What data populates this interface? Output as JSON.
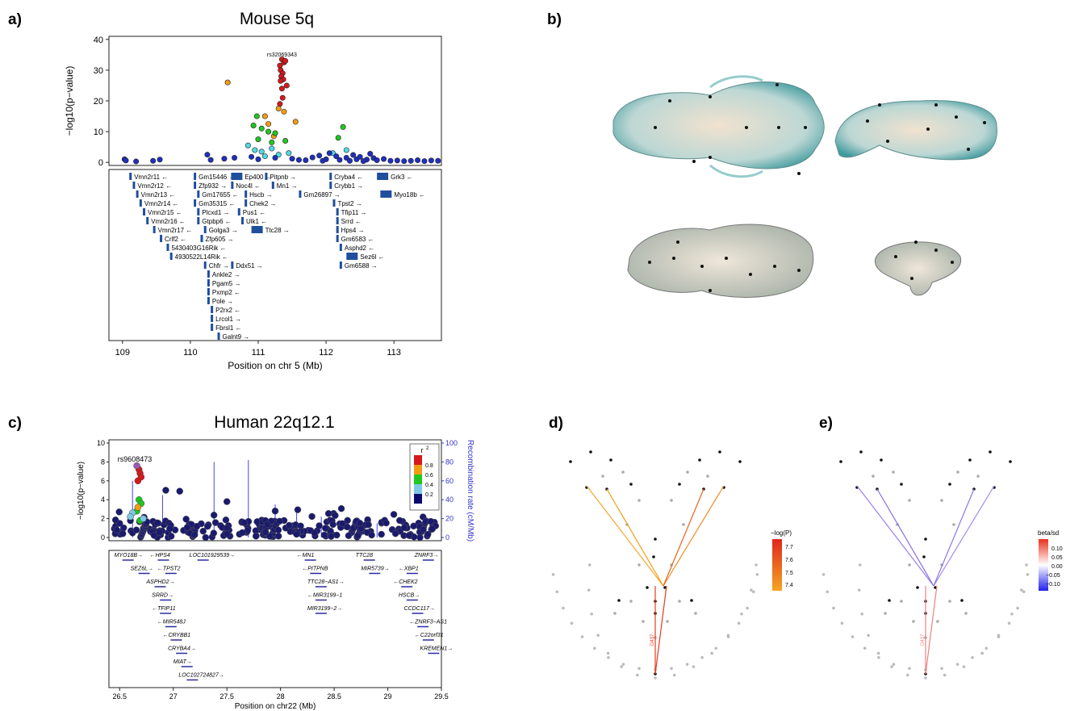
{
  "panels": {
    "a": {
      "label": "a)",
      "title": "Mouse 5q"
    },
    "b": {
      "label": "b)"
    },
    "c": {
      "label": "c)",
      "title": "Human 22q12.1"
    },
    "d": {
      "label": "d)"
    },
    "e": {
      "label": "e)"
    }
  },
  "colors": {
    "red": "#d7191c",
    "orange": "#f39c12",
    "green": "#1ec81e",
    "cyan": "#4fd9e6",
    "blue": "#1f2fbf",
    "navy": "#0b0b6e",
    "gene": "#1f4e9e"
  },
  "chart_data": [
    {
      "id": "mouse",
      "type": "scatter",
      "title": "Mouse 5q",
      "xlabel": "Position on chr 5 (Mb)",
      "ylabel": "−log10(p−value)",
      "xlim": [
        108.8,
        113.7
      ],
      "ylim": [
        -1,
        41
      ],
      "xticks": [
        "109",
        "110",
        "111",
        "112",
        "113"
      ],
      "yticks": [
        "0",
        "10",
        "20",
        "30",
        "40"
      ],
      "lead_snp": "rs32069343",
      "points": [
        {
          "x": 111.35,
          "y": 33.5,
          "c": "red"
        },
        {
          "x": 111.38,
          "y": 32.5,
          "c": "red"
        },
        {
          "x": 111.32,
          "y": 31.5,
          "c": "red"
        },
        {
          "x": 111.4,
          "y": 33,
          "c": "red"
        },
        {
          "x": 111.33,
          "y": 30,
          "c": "red"
        },
        {
          "x": 111.36,
          "y": 29,
          "c": "red"
        },
        {
          "x": 111.34,
          "y": 28,
          "c": "red"
        },
        {
          "x": 111.37,
          "y": 27,
          "c": "red"
        },
        {
          "x": 111.33,
          "y": 26.5,
          "c": "red"
        },
        {
          "x": 111.42,
          "y": 25,
          "c": "red"
        },
        {
          "x": 111.35,
          "y": 24,
          "c": "red"
        },
        {
          "x": 111.36,
          "y": 21,
          "c": "red"
        },
        {
          "x": 111.32,
          "y": 19,
          "c": "red"
        },
        {
          "x": 110.55,
          "y": 26,
          "c": "orange"
        },
        {
          "x": 111.3,
          "y": 17.5,
          "c": "orange"
        },
        {
          "x": 111.38,
          "y": 16.5,
          "c": "orange"
        },
        {
          "x": 111.55,
          "y": 13.2,
          "c": "orange"
        },
        {
          "x": 111.15,
          "y": 12.5,
          "c": "orange"
        },
        {
          "x": 111.1,
          "y": 15,
          "c": "orange"
        },
        {
          "x": 111.23,
          "y": 8.5,
          "c": "orange"
        },
        {
          "x": 110.98,
          "y": 15,
          "c": "green"
        },
        {
          "x": 110.93,
          "y": 12,
          "c": "green"
        },
        {
          "x": 111.05,
          "y": 11,
          "c": "green"
        },
        {
          "x": 111.15,
          "y": 10,
          "c": "green"
        },
        {
          "x": 111.25,
          "y": 9.5,
          "c": "green"
        },
        {
          "x": 111.4,
          "y": 7,
          "c": "green"
        },
        {
          "x": 111.2,
          "y": 6.5,
          "c": "green"
        },
        {
          "x": 112.25,
          "y": 11.5,
          "c": "green"
        },
        {
          "x": 112.18,
          "y": 8,
          "c": "green"
        },
        {
          "x": 111.0,
          "y": 7.5,
          "c": "green"
        },
        {
          "x": 110.85,
          "y": 5.5,
          "c": "cyan"
        },
        {
          "x": 110.95,
          "y": 4,
          "c": "cyan"
        },
        {
          "x": 111.05,
          "y": 3.5,
          "c": "cyan"
        },
        {
          "x": 111.2,
          "y": 4.5,
          "c": "cyan"
        },
        {
          "x": 111.3,
          "y": 2.5,
          "c": "cyan"
        },
        {
          "x": 111.45,
          "y": 3,
          "c": "cyan"
        },
        {
          "x": 112.1,
          "y": 3,
          "c": "cyan"
        },
        {
          "x": 112.3,
          "y": 4,
          "c": "cyan"
        },
        {
          "x": 111.1,
          "y": 2,
          "c": "cyan"
        },
        {
          "x": 109.03,
          "y": 1,
          "c": "blue"
        },
        {
          "x": 109.05,
          "y": 0.6,
          "c": "blue"
        },
        {
          "x": 109.2,
          "y": 0.3,
          "c": "blue"
        },
        {
          "x": 109.45,
          "y": 0.5,
          "c": "blue"
        },
        {
          "x": 109.55,
          "y": 0.9,
          "c": "blue"
        },
        {
          "x": 110.25,
          "y": 2.5,
          "c": "blue"
        },
        {
          "x": 110.3,
          "y": 0.8,
          "c": "blue"
        },
        {
          "x": 110.5,
          "y": 1.2,
          "c": "blue"
        },
        {
          "x": 110.65,
          "y": 1.5,
          "c": "blue"
        },
        {
          "x": 110.9,
          "y": 1.8,
          "c": "blue"
        },
        {
          "x": 111.0,
          "y": 1.0,
          "c": "blue"
        },
        {
          "x": 111.25,
          "y": 1.5,
          "c": "blue"
        },
        {
          "x": 111.5,
          "y": 1.2,
          "c": "blue"
        },
        {
          "x": 111.6,
          "y": 0.8,
          "c": "blue"
        },
        {
          "x": 111.7,
          "y": 0.7,
          "c": "blue"
        },
        {
          "x": 111.8,
          "y": 1.6,
          "c": "blue"
        },
        {
          "x": 111.9,
          "y": 2.2,
          "c": "blue"
        },
        {
          "x": 112.0,
          "y": 1.0,
          "c": "blue"
        },
        {
          "x": 112.05,
          "y": 3.0,
          "c": "blue"
        },
        {
          "x": 112.15,
          "y": 2.0,
          "c": "blue"
        },
        {
          "x": 112.2,
          "y": 0.8,
          "c": "blue"
        },
        {
          "x": 112.3,
          "y": 1.5,
          "c": "blue"
        },
        {
          "x": 112.4,
          "y": 2.4,
          "c": "blue"
        },
        {
          "x": 112.45,
          "y": 1.0,
          "c": "blue"
        },
        {
          "x": 112.5,
          "y": 1.8,
          "c": "blue"
        },
        {
          "x": 112.6,
          "y": 0.9,
          "c": "blue"
        },
        {
          "x": 112.7,
          "y": 1.4,
          "c": "blue"
        },
        {
          "x": 112.75,
          "y": 0.7,
          "c": "blue"
        },
        {
          "x": 112.85,
          "y": 1.1,
          "c": "blue"
        },
        {
          "x": 112.95,
          "y": 0.5,
          "c": "blue"
        },
        {
          "x": 113.05,
          "y": 0.6,
          "c": "blue"
        },
        {
          "x": 113.15,
          "y": 0.4,
          "c": "blue"
        },
        {
          "x": 113.25,
          "y": 0.5,
          "c": "blue"
        },
        {
          "x": 113.35,
          "y": 0.7,
          "c": "blue"
        },
        {
          "x": 113.45,
          "y": 0.4,
          "c": "blue"
        },
        {
          "x": 113.55,
          "y": 0.6,
          "c": "blue"
        },
        {
          "x": 113.65,
          "y": 0.5,
          "c": "blue"
        },
        {
          "x": 112.55,
          "y": 0.4,
          "c": "blue"
        },
        {
          "x": 112.65,
          "y": 2.8,
          "c": "blue"
        },
        {
          "x": 111.95,
          "y": 0.5,
          "c": "blue"
        },
        {
          "x": 112.35,
          "y": 0.5,
          "c": "blue"
        }
      ],
      "genes": [
        {
          "n": "Vmn2r11 ←",
          "x": 109.1
        },
        {
          "n": "Vmn2r12 ←",
          "x": 109.15
        },
        {
          "n": "Vmn2r13 ←",
          "x": 109.2
        },
        {
          "n": "Vmn2r14 ←",
          "x": 109.25
        },
        {
          "n": "Vmn2r15 ←",
          "x": 109.3
        },
        {
          "n": "Vmn2r16 ←",
          "x": 109.35
        },
        {
          "n": "Vmn2r17 ←",
          "x": 109.45
        },
        {
          "n": "Crlf2 ←",
          "x": 109.55
        },
        {
          "n": "5430403G16Rik ←",
          "x": 109.65
        },
        {
          "n": "4930522L14Rik ←",
          "x": 109.7
        },
        {
          "n": "Gm15446 →",
          "x": 110.05,
          "row": 0
        },
        {
          "n": "Zfp932 →",
          "x": 110.05,
          "row": 1
        },
        {
          "n": "Gm17655 ←",
          "x": 110.1,
          "row": 2
        },
        {
          "n": "Gm35315 ←",
          "x": 110.05,
          "row": 3
        },
        {
          "n": "Plcxd1 →",
          "x": 110.1,
          "row": 4
        },
        {
          "n": "Gtpbp6 ←",
          "x": 110.1,
          "row": 5
        },
        {
          "n": "Golga3 →",
          "x": 110.2,
          "row": 6
        },
        {
          "n": "Zfp605 →",
          "x": 110.15,
          "row": 7
        },
        {
          "n": "Chfr →",
          "x": 110.2,
          "row": 10
        },
        {
          "n": "Ankle2 →",
          "x": 110.25,
          "row": 11
        },
        {
          "n": "Pgam5 →",
          "x": 110.25,
          "row": 12
        },
        {
          "n": "Pxmp2 ←",
          "x": 110.25,
          "row": 13
        },
        {
          "n": "Pole →",
          "x": 110.25,
          "row": 14
        },
        {
          "n": "P2rx2 ←",
          "x": 110.3,
          "row": 15
        },
        {
          "n": "Lrcol1 →",
          "x": 110.3,
          "row": 16
        },
        {
          "n": "Fbrsl1 ←",
          "x": 110.3,
          "row": 17
        },
        {
          "n": "Galnt9 →",
          "x": 110.4,
          "row": 18
        },
        {
          "n": "Ep400 ←",
          "x": 110.6,
          "row": 0
        },
        {
          "n": "Noc4l ←",
          "x": 110.6,
          "row": 1
        },
        {
          "n": "Hscb →",
          "x": 110.8,
          "row": 2
        },
        {
          "n": "Chek2 →",
          "x": 110.8,
          "row": 3
        },
        {
          "n": "Pus1 ←",
          "x": 110.7,
          "row": 4
        },
        {
          "n": "Ulk1 ←",
          "x": 110.75,
          "row": 5
        },
        {
          "n": "Ttc28 →",
          "x": 110.9,
          "row": 6
        },
        {
          "n": "Ddx51 →",
          "x": 110.6,
          "row": 10
        },
        {
          "n": "Pitpnb →",
          "x": 111.1,
          "row": 0
        },
        {
          "n": "Mn1 →",
          "x": 111.2,
          "row": 1
        },
        {
          "n": "Gm26897 →",
          "x": 111.6,
          "row": 2
        },
        {
          "n": "Cryba4 ←",
          "x": 112.05,
          "row": 0
        },
        {
          "n": "Crybb1 →",
          "x": 112.05,
          "row": 1
        },
        {
          "n": "Tpst2 →",
          "x": 112.1,
          "row": 3
        },
        {
          "n": "Tfip11 →",
          "x": 112.15,
          "row": 4
        },
        {
          "n": "Srrd ←",
          "x": 112.15,
          "row": 5
        },
        {
          "n": "Hps4 →",
          "x": 112.15,
          "row": 6
        },
        {
          "n": "Gm6583 ←",
          "x": 112.15,
          "row": 7
        },
        {
          "n": "Asphd2 ←",
          "x": 112.2,
          "row": 8
        },
        {
          "n": "Sez6l ←",
          "x": 112.3,
          "row": 9
        },
        {
          "n": "Gm6588 →",
          "x": 112.2,
          "row": 10
        },
        {
          "n": "Grk3 ←",
          "x": 112.75,
          "row": 0
        },
        {
          "n": "Myo18b ←",
          "x": 112.8,
          "row": 2
        }
      ]
    },
    {
      "id": "human",
      "type": "scatter",
      "title": "Human 22q12.1",
      "xlabel": "Position on chr22 (Mb)",
      "ylabel": "−log10(p−value)",
      "y2label": "Recombination rate (cM/Mb)",
      "xlim": [
        26.4,
        29.5
      ],
      "ylim": [
        0,
        10
      ],
      "y2lim": [
        0,
        100
      ],
      "xticks": [
        "26.5",
        "27",
        "27.5",
        "28",
        "28.5",
        "29",
        "29.5"
      ],
      "yticks": [
        "0",
        "2",
        "4",
        "6",
        "8",
        "10"
      ],
      "y2ticks": [
        "0",
        "20",
        "40",
        "60",
        "80",
        "100"
      ],
      "lead_snp": "rs9608473",
      "legend": {
        "title": "r",
        "sup": "2",
        "ticks": [
          "0.8",
          "0.6",
          "0.4",
          "0.2"
        ]
      },
      "genes": [
        {
          "n": "MYO18B→",
          "row": 0,
          "x": 26.45
        },
        {
          "n": "←HPS4",
          "row": 0,
          "x": 26.78
        },
        {
          "n": "LOC101929539→",
          "row": 0,
          "x": 27.15
        },
        {
          "n": "←MN1",
          "row": 0,
          "x": 28.15
        },
        {
          "n": "TTC28",
          "row": 0,
          "x": 28.7
        },
        {
          "n": "ZNRF3→",
          "row": 0,
          "x": 29.25
        },
        {
          "n": "SEZ6L→",
          "row": 1,
          "x": 26.6
        },
        {
          "n": "←TPST2",
          "row": 1,
          "x": 26.85
        },
        {
          "n": "←PITPNB",
          "row": 1,
          "x": 28.2
        },
        {
          "n": "MIR5739→",
          "row": 1,
          "x": 28.75
        },
        {
          "n": "←XBP1",
          "row": 1,
          "x": 29.1
        },
        {
          "n": "ASPHD2→",
          "row": 2,
          "x": 26.75
        },
        {
          "n": "TTC28−AS1→",
          "row": 2,
          "x": 28.25
        },
        {
          "n": "←CHEK2",
          "row": 2,
          "x": 29.05
        },
        {
          "n": "SRRD→",
          "row": 3,
          "x": 26.8
        },
        {
          "n": "←MIR3199−1",
          "row": 3,
          "x": 28.25
        },
        {
          "n": "HSCB→",
          "row": 3,
          "x": 29.1
        },
        {
          "n": "←TFIP11",
          "row": 4,
          "x": 26.8
        },
        {
          "n": "CCDC117→",
          "row": 4,
          "x": 29.15
        },
        {
          "n": "MIR3199−2→",
          "row": 4,
          "x": 28.25
        },
        {
          "n": "←MIR548J",
          "row": 5,
          "x": 26.85
        },
        {
          "n": "←ZNRF3−AS1",
          "row": 5,
          "x": 29.2
        },
        {
          "n": "←CRYBB1",
          "row": 6,
          "x": 26.9
        },
        {
          "n": "←C22orf31",
          "row": 6,
          "x": 29.25
        },
        {
          "n": "CRYBA4→",
          "row": 7,
          "x": 26.95
        },
        {
          "n": "KREMEN1→",
          "row": 7,
          "x": 29.3
        },
        {
          "n": "MIAT→",
          "row": 8,
          "x": 27.0
        },
        {
          "n": "LOC102724827→",
          "row": 9,
          "x": 27.05
        }
      ]
    },
    {
      "id": "face_logp",
      "type": "scatter",
      "colorbar_title": "−log(P)",
      "colorbar_ticks": [
        "7.7",
        "7.6",
        "7.5",
        "7.4"
      ],
      "edge_label": "D437"
    },
    {
      "id": "face_beta",
      "type": "scatter",
      "colorbar_title": "beta/sd",
      "colorbar_ticks": [
        "0.10",
        "0.05",
        "0.00",
        "−0.05",
        "−0.10"
      ],
      "edge_label": "D437"
    }
  ]
}
